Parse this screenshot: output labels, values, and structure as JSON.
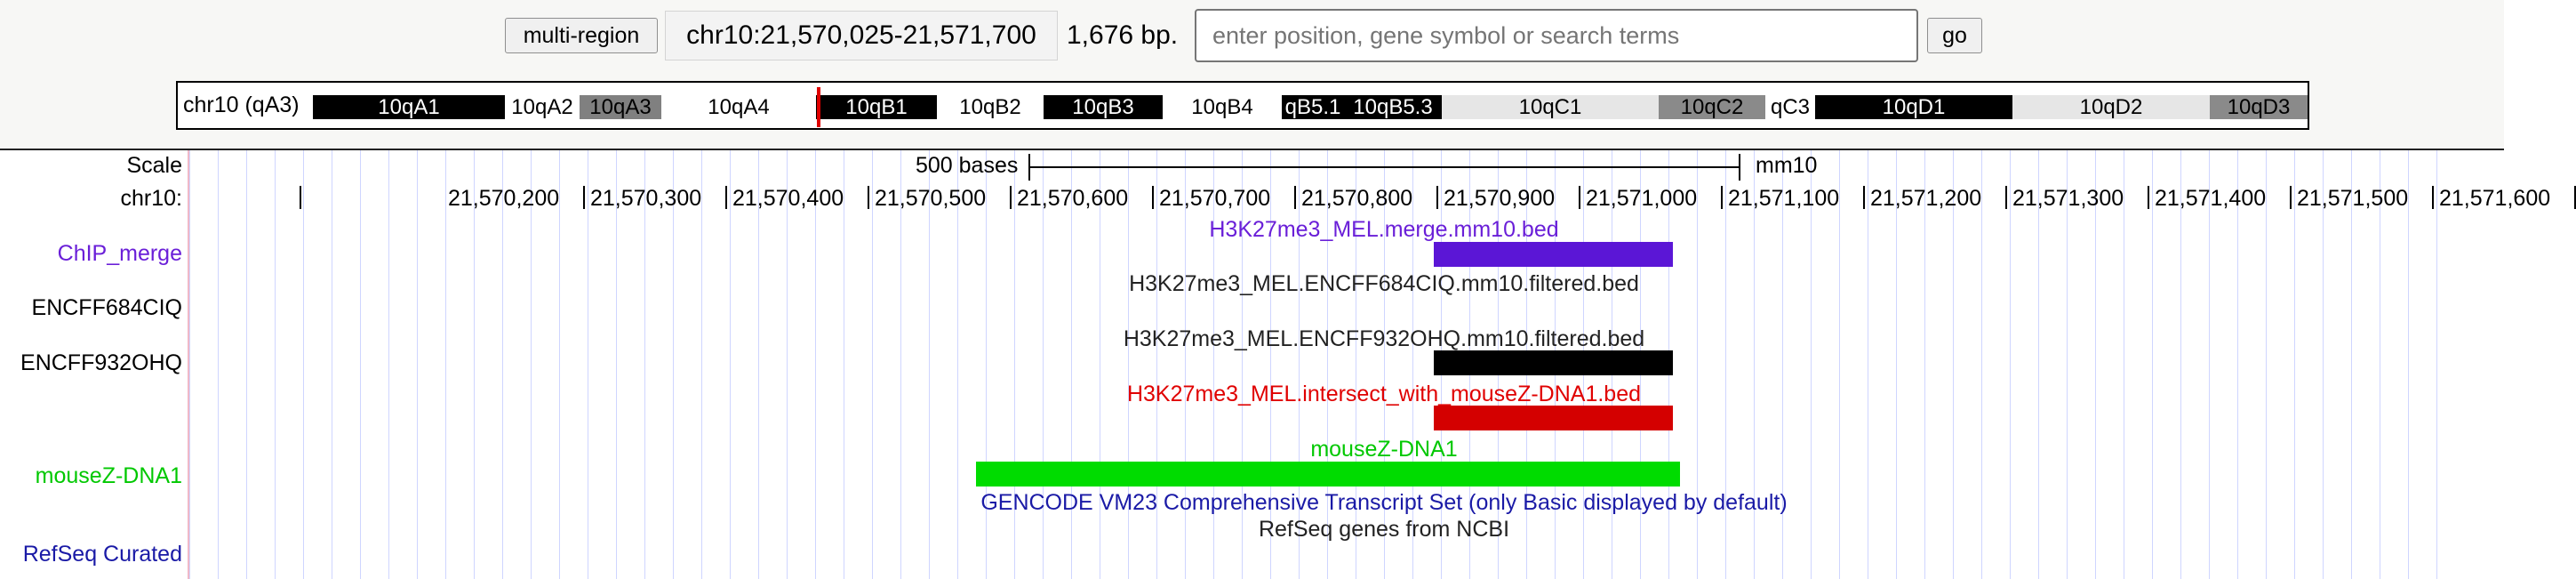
{
  "navigation": {
    "multi_region_label": "multi-region",
    "position": "chr10:21,570,025-21,571,700",
    "bp_count": "1,676 bp.",
    "search_placeholder": "enter position, gene symbol or search terms",
    "go_label": "go"
  },
  "ideogram": {
    "chromosome_label": "chr10 (qA3)",
    "marker_color": "#e00000",
    "bands": [
      {
        "name": "10qA1",
        "fill": "#000000",
        "text": "#ffffff",
        "weight": 216
      },
      {
        "name": "10qA2",
        "fill": "#ffffff",
        "text": "#000000",
        "weight": 84
      },
      {
        "name": "10qA3",
        "fill": "#808080",
        "text": "#000000",
        "weight": 92
      },
      {
        "name": "10qA4",
        "fill": "#ffffff",
        "text": "#000000",
        "weight": 174
      },
      {
        "name": "10qB1",
        "fill": "#000000",
        "text": "#ffffff",
        "weight": 136
      },
      {
        "name": "10qB2",
        "fill": "#ffffff",
        "text": "#000000",
        "weight": 120
      },
      {
        "name": "10qB3",
        "fill": "#000000",
        "text": "#ffffff",
        "weight": 134
      },
      {
        "name": "10qB4",
        "fill": "#ffffff",
        "text": "#000000",
        "weight": 134
      },
      {
        "name": "qB5.1",
        "fill": "#000000",
        "text": "#ffffff",
        "weight": 70
      },
      {
        "name": "10qB5.3",
        "fill": "#000000",
        "text": "#ffffff",
        "weight": 110
      },
      {
        "name": "10qC1",
        "fill": "#e6e6e6",
        "text": "#000000",
        "weight": 244
      },
      {
        "name": "10qC2",
        "fill": "#8a8a8a",
        "text": "#000000",
        "weight": 120
      },
      {
        "name": "qC3",
        "fill": "#ffffff",
        "text": "#000000",
        "weight": 56
      },
      {
        "name": "10qD1",
        "fill": "#000000",
        "text": "#ffffff",
        "weight": 222
      },
      {
        "name": "10qD2",
        "fill": "#e6e6e6",
        "text": "#000000",
        "weight": 222
      },
      {
        "name": "10qD3",
        "fill": "#8a8a8a",
        "text": "#000000",
        "weight": 110
      }
    ]
  },
  "tracks": {
    "scale_label": "Scale",
    "chrom_label": "chr10:",
    "scale_bar_text": "500 bases",
    "assembly": "mm10",
    "labels": [
      {
        "id": "chip-merge",
        "text": "ChIP_merge",
        "color": "#6a1fd8"
      },
      {
        "id": "encff684ciq",
        "text": "ENCFF684CIQ",
        "color": "#000000"
      },
      {
        "id": "encff932ohq",
        "text": "ENCFF932OHQ",
        "color": "#000000"
      },
      {
        "id": "mousez-dna1",
        "text": "mouseZ-DNA1",
        "color": "#00c800"
      },
      {
        "id": "refseq-curated",
        "text": "RefSeq Curated",
        "color": "#1a1aa6"
      }
    ],
    "coordinate_ticks": [
      "21,570,200",
      "21,570,300",
      "21,570,400",
      "21,570,500",
      "21,570,600",
      "21,570,700",
      "21,570,800",
      "21,570,900",
      "21,571,000",
      "21,571,100",
      "21,571,200",
      "21,571,300",
      "21,571,400",
      "21,571,500",
      "21,571,600"
    ],
    "features": [
      {
        "id": "chip-merge",
        "title": "H3K27me3_MEL.merge.mm10.bed",
        "title_color": "#6a1fd8",
        "bar_color": "#5b16d6",
        "start": 21570802,
        "end": 21570970
      },
      {
        "id": "encff684ciq",
        "title": "H3K27me3_MEL.ENCFF684CIQ.mm10.filtered.bed",
        "title_color": "#222222",
        "bar_color": "",
        "start": null,
        "end": null
      },
      {
        "id": "encff932ohq",
        "title": "H3K27me3_MEL.ENCFF932OHQ.mm10.filtered.bed",
        "title_color": "#222222",
        "bar_color": "#000000",
        "start": 21570802,
        "end": 21570970
      },
      {
        "id": "intersect",
        "title": "H3K27me3_MEL.intersect_with_mouseZ-DNA1.bed",
        "title_color": "#e00000",
        "bar_color": "#d40000",
        "start": 21570802,
        "end": 21570970
      },
      {
        "id": "mousez-dna1",
        "title": "mouseZ-DNA1",
        "title_color": "#00c800",
        "bar_color": "#00dc00",
        "start": 21570480,
        "end": 21570975
      },
      {
        "id": "gencode",
        "title": "GENCODE VM23 Comprehensive Transcript Set (only Basic displayed by default)",
        "title_color": "#1a1aa6",
        "bar_color": "",
        "start": null,
        "end": null
      },
      {
        "id": "refseq",
        "title": "RefSeq genes from NCBI",
        "title_color": "#222222",
        "bar_color": "",
        "start": null,
        "end": null
      }
    ]
  }
}
